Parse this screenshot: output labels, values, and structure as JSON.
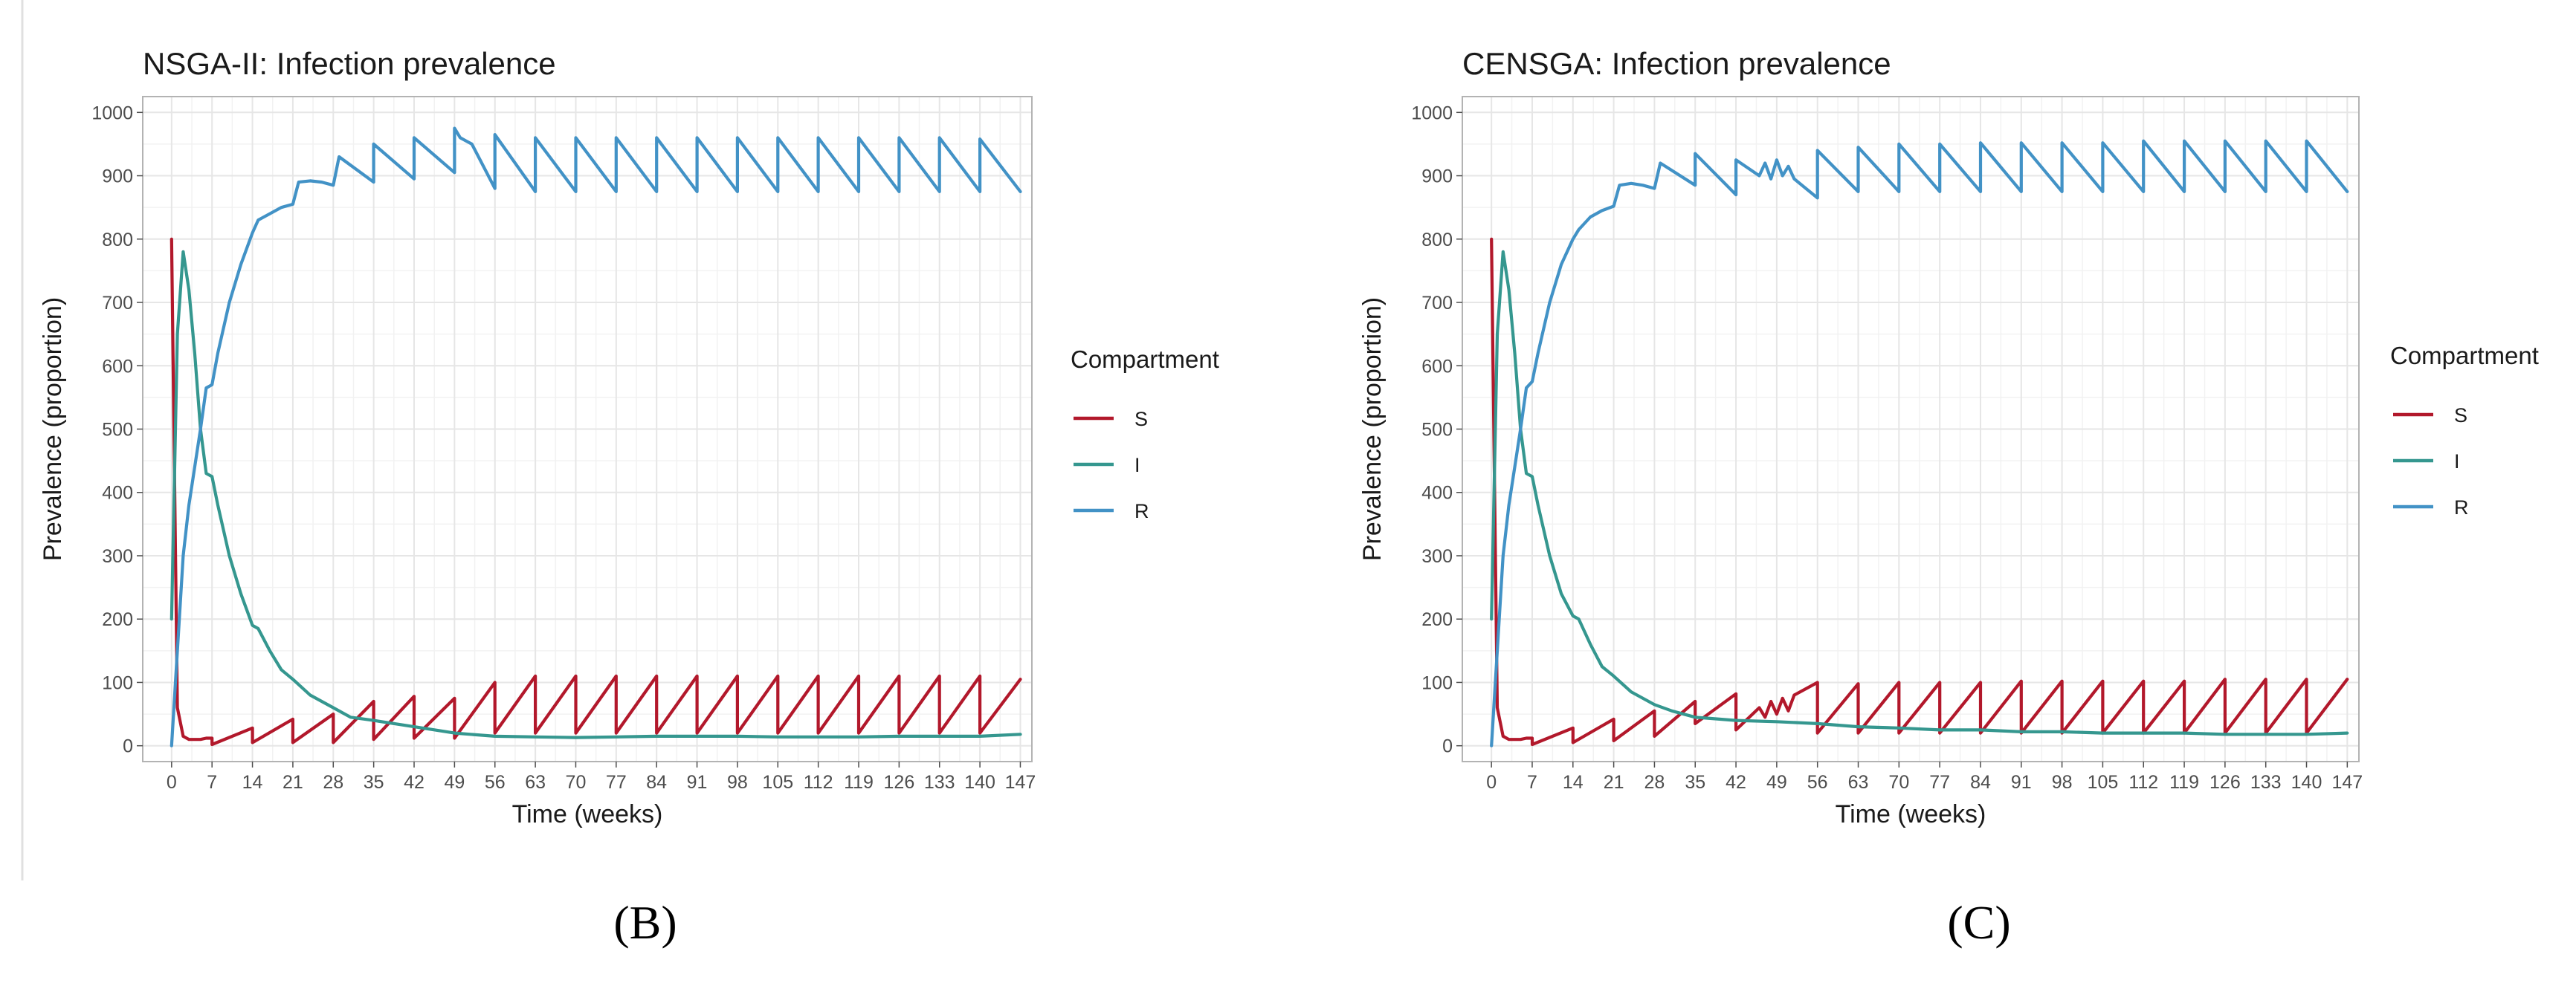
{
  "chart_data": [
    {
      "type": "line",
      "panel": "B",
      "caption": "(B)",
      "title": "NSGA-II: Infection prevalence",
      "xlabel": "Time (weeks)",
      "ylabel": "Prevalence (proportion)",
      "xlim": [
        -5,
        149
      ],
      "ylim": [
        -25,
        1025
      ],
      "xticks": [
        0,
        7,
        14,
        21,
        28,
        35,
        42,
        49,
        56,
        63,
        70,
        77,
        84,
        91,
        98,
        105,
        112,
        119,
        126,
        133,
        140,
        147
      ],
      "yticks": [
        0,
        100,
        200,
        300,
        400,
        500,
        600,
        700,
        800,
        900,
        1000
      ],
      "grid": true,
      "legend": {
        "title": "Compartment",
        "position": "right",
        "entries": [
          "S",
          "I",
          "R"
        ]
      },
      "series": [
        {
          "name": "S",
          "color": "#b2182b",
          "x": [
            0,
            1,
            2,
            3,
            4,
            5,
            6,
            7,
            7,
            14,
            14,
            21,
            21,
            28,
            28,
            35,
            35,
            42,
            42,
            49,
            49,
            56,
            56,
            63,
            63,
            70,
            70,
            77,
            77,
            84,
            84,
            91,
            91,
            98,
            98,
            105,
            105,
            112,
            112,
            119,
            119,
            126,
            126,
            133,
            133,
            140,
            140,
            147
          ],
          "y": [
            800,
            60,
            15,
            10,
            10,
            10,
            12,
            12,
            2,
            28,
            5,
            42,
            5,
            50,
            5,
            70,
            10,
            78,
            12,
            75,
            12,
            100,
            20,
            110,
            20,
            110,
            20,
            110,
            20,
            110,
            20,
            110,
            20,
            110,
            20,
            110,
            20,
            110,
            20,
            110,
            20,
            110,
            20,
            110,
            20,
            110,
            20,
            105
          ]
        },
        {
          "name": "I",
          "color": "#35978f",
          "x": [
            0,
            1,
            2,
            3,
            4,
            5,
            6,
            7,
            8,
            10,
            12,
            14,
            15,
            17,
            19,
            21,
            24,
            28,
            31,
            35,
            42,
            49,
            56,
            63,
            70,
            77,
            84,
            91,
            98,
            105,
            112,
            119,
            126,
            133,
            140,
            147
          ],
          "y": [
            200,
            650,
            780,
            720,
            620,
            500,
            430,
            425,
            380,
            300,
            240,
            190,
            185,
            150,
            120,
            105,
            80,
            60,
            45,
            40,
            30,
            20,
            15,
            14,
            13,
            14,
            15,
            15,
            15,
            14,
            14,
            14,
            15,
            15,
            15,
            18
          ]
        },
        {
          "name": "R",
          "color": "#4292c6",
          "x": [
            0,
            1,
            2,
            3,
            4,
            5,
            6,
            7,
            8,
            10,
            12,
            14,
            15,
            17,
            19,
            21,
            22,
            24,
            26,
            28,
            29,
            35,
            35,
            42,
            42,
            49,
            49,
            50,
            51,
            52,
            56,
            56,
            63,
            63,
            70,
            70,
            77,
            77,
            84,
            84,
            91,
            91,
            98,
            98,
            105,
            105,
            112,
            112,
            119,
            119,
            126,
            126,
            133,
            133,
            140,
            140,
            147
          ],
          "y": [
            0,
            150,
            300,
            380,
            440,
            500,
            565,
            570,
            620,
            700,
            760,
            810,
            830,
            840,
            850,
            855,
            890,
            892,
            890,
            885,
            930,
            890,
            950,
            895,
            960,
            905,
            975,
            960,
            955,
            950,
            880,
            965,
            875,
            960,
            875,
            960,
            875,
            960,
            875,
            960,
            875,
            960,
            875,
            960,
            875,
            960,
            875,
            960,
            875,
            960,
            875,
            960,
            875,
            960,
            875,
            958,
            875
          ]
        }
      ]
    },
    {
      "type": "line",
      "panel": "C",
      "caption": "(C)",
      "title": "CENSGA: Infection prevalence",
      "xlabel": "Time (weeks)",
      "ylabel": "Prevalence (proportion)",
      "xlim": [
        -5,
        149
      ],
      "ylim": [
        -25,
        1025
      ],
      "xticks": [
        0,
        7,
        14,
        21,
        28,
        35,
        42,
        49,
        56,
        63,
        70,
        77,
        84,
        91,
        98,
        105,
        112,
        119,
        126,
        133,
        140,
        147
      ],
      "yticks": [
        0,
        100,
        200,
        300,
        400,
        500,
        600,
        700,
        800,
        900,
        1000
      ],
      "grid": true,
      "legend": {
        "title": "Compartment",
        "position": "right",
        "entries": [
          "S",
          "I",
          "R"
        ]
      },
      "series": [
        {
          "name": "S",
          "color": "#b2182b",
          "x": [
            0,
            1,
            2,
            3,
            4,
            5,
            6,
            7,
            7,
            14,
            14,
            21,
            21,
            28,
            28,
            35,
            35,
            42,
            42,
            46,
            47,
            48,
            49,
            50,
            51,
            52,
            56,
            56,
            63,
            63,
            70,
            70,
            77,
            77,
            84,
            84,
            91,
            91,
            98,
            98,
            105,
            105,
            112,
            112,
            119,
            119,
            126,
            126,
            133,
            133,
            140,
            140,
            147
          ],
          "y": [
            800,
            60,
            15,
            10,
            10,
            10,
            12,
            12,
            2,
            28,
            5,
            42,
            8,
            55,
            15,
            70,
            35,
            82,
            25,
            60,
            45,
            70,
            50,
            75,
            55,
            80,
            100,
            20,
            98,
            20,
            100,
            20,
            100,
            20,
            100,
            20,
            102,
            20,
            102,
            20,
            102,
            20,
            102,
            20,
            102,
            20,
            105,
            20,
            105,
            20,
            105,
            20,
            105
          ]
        },
        {
          "name": "I",
          "color": "#35978f",
          "x": [
            0,
            1,
            2,
            3,
            4,
            5,
            6,
            7,
            8,
            10,
            12,
            14,
            15,
            17,
            19,
            21,
            24,
            28,
            31,
            35,
            42,
            49,
            56,
            63,
            70,
            77,
            84,
            91,
            98,
            105,
            112,
            119,
            126,
            133,
            140,
            147
          ],
          "y": [
            200,
            650,
            780,
            720,
            620,
            500,
            430,
            425,
            380,
            300,
            240,
            205,
            200,
            160,
            125,
            110,
            85,
            65,
            55,
            45,
            40,
            38,
            35,
            30,
            28,
            25,
            25,
            22,
            22,
            20,
            20,
            20,
            18,
            18,
            18,
            20
          ]
        },
        {
          "name": "R",
          "color": "#4292c6",
          "x": [
            0,
            1,
            2,
            3,
            4,
            5,
            6,
            7,
            8,
            10,
            12,
            14,
            15,
            17,
            19,
            21,
            22,
            24,
            26,
            28,
            29,
            35,
            35,
            42,
            42,
            46,
            47,
            48,
            49,
            50,
            51,
            52,
            56,
            56,
            63,
            63,
            70,
            70,
            77,
            77,
            84,
            84,
            91,
            91,
            98,
            98,
            105,
            105,
            112,
            112,
            119,
            119,
            126,
            126,
            133,
            133,
            140,
            140,
            147
          ],
          "y": [
            0,
            150,
            300,
            380,
            440,
            500,
            565,
            575,
            620,
            700,
            760,
            800,
            815,
            835,
            845,
            852,
            885,
            888,
            885,
            880,
            920,
            885,
            935,
            870,
            925,
            900,
            920,
            895,
            925,
            900,
            915,
            895,
            865,
            940,
            875,
            945,
            875,
            950,
            875,
            950,
            875,
            952,
            875,
            952,
            875,
            952,
            875,
            952,
            875,
            955,
            875,
            955,
            875,
            955,
            875,
            955,
            875,
            955,
            875
          ]
        }
      ]
    }
  ]
}
